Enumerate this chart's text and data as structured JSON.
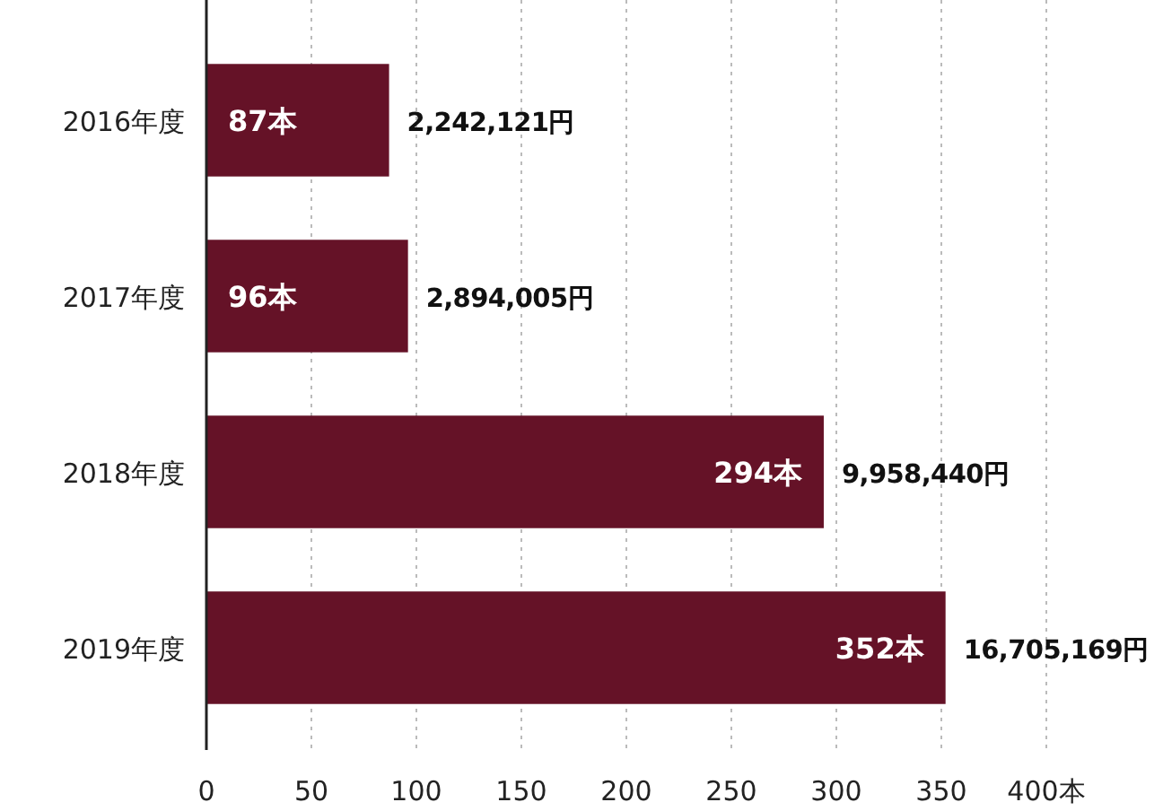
{
  "chart_data": {
    "type": "bar",
    "orientation": "horizontal",
    "categories": [
      "2016年度",
      "2017年度",
      "2018年度",
      "2019年度"
    ],
    "values": [
      87,
      96,
      294,
      352
    ],
    "value_labels": [
      "87本",
      "96本",
      "294本",
      "352本"
    ],
    "annotations": [
      {
        "text": "2,242,121円",
        "x": 87,
        "y": "2016年度"
      },
      {
        "text": "2,894,005円",
        "x": 96,
        "y": "2017年度"
      },
      {
        "text": "9,958,440円",
        "x": 294,
        "y": "2018年度"
      },
      {
        "text": "16,705,169円",
        "x": 352,
        "y": "2019年度"
      }
    ],
    "color": "#651227",
    "xlim": [
      0,
      400
    ],
    "xticks": [
      0,
      50,
      100,
      150,
      200,
      250,
      300,
      350,
      {
        "value": 400,
        "label": "400本"
      }
    ],
    "grid": "x"
  }
}
